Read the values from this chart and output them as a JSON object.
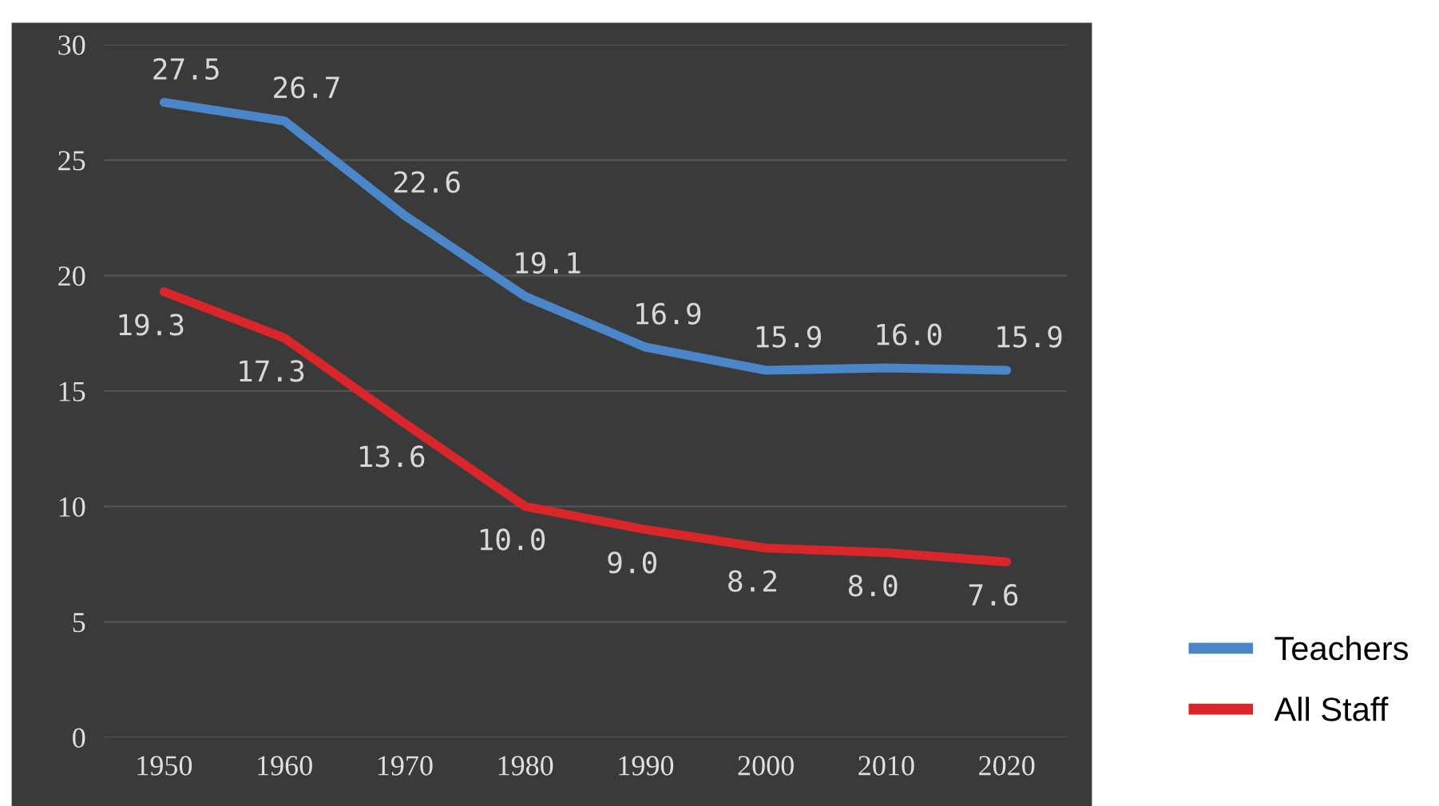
{
  "chart_data": {
    "type": "line",
    "categories": [
      "1950",
      "1960",
      "1970",
      "1980",
      "1990",
      "2000",
      "2010",
      "2020"
    ],
    "series": [
      {
        "name": "Teachers",
        "color": "#4a86c8",
        "values": [
          27.5,
          26.7,
          22.6,
          19.1,
          16.9,
          15.9,
          16.0,
          15.9
        ],
        "value_labels": [
          "27.5",
          "26.7",
          "22.6",
          "19.1",
          "16.9",
          "15.9",
          "16.0",
          "15.9"
        ]
      },
      {
        "name": "All Staff",
        "color": "#d9262b",
        "values": [
          19.3,
          17.3,
          13.6,
          10.0,
          9.0,
          8.2,
          8.0,
          7.6
        ],
        "value_labels": [
          "19.3",
          "17.3",
          "13.6",
          "10.0",
          "9.0",
          "8.2",
          "8.0",
          "7.6"
        ]
      }
    ],
    "ylim": [
      0,
      30
    ],
    "yticks": [
      0,
      5,
      10,
      15,
      20,
      25,
      30
    ],
    "grid": "y",
    "legend": "bottom right",
    "marker": "none",
    "line_style": "solid"
  }
}
